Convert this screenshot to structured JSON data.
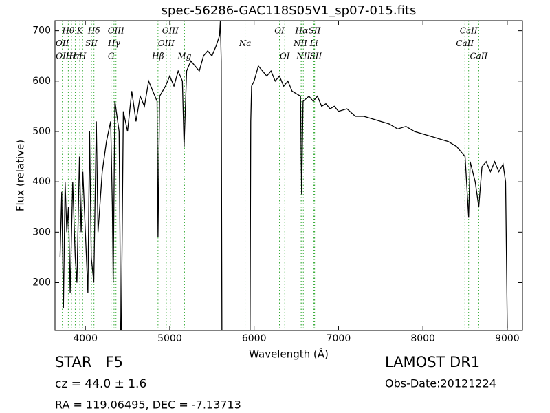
{
  "chart_data": {
    "type": "line",
    "title": "spec-56286-GAC118S05V1_sp07-015.fits",
    "xlabel": "Wavelength (Å)",
    "ylabel": "Flux (relative)",
    "color": "#000000",
    "line_color": "#33aa33",
    "xlim": [
      3640,
      9180
    ],
    "ylim": [
      105,
      720
    ],
    "xticks": [
      4000,
      5000,
      6000,
      7000,
      8000,
      9000
    ],
    "yticks": [
      200,
      300,
      400,
      500,
      600,
      700
    ],
    "x": [
      3700,
      3720,
      3740,
      3760,
      3780,
      3800,
      3820,
      3850,
      3880,
      3900,
      3930,
      3950,
      3970,
      4000,
      4030,
      4050,
      4070,
      4100,
      4130,
      4150,
      4200,
      4250,
      4300,
      4320,
      4330,
      4350,
      4400,
      4410,
      4420,
      4450,
      4500,
      4550,
      4600,
      4650,
      4700,
      4750,
      4800,
      4850,
      4861,
      4880,
      4950,
      5000,
      5050,
      5100,
      5150,
      5170,
      5200,
      5250,
      5300,
      5350,
      5400,
      5450,
      5500,
      5550,
      5590,
      5600,
      5610,
      5620,
      5950,
      5960,
      5970,
      6000,
      6050,
      6100,
      6150,
      6200,
      6250,
      6300,
      6350,
      6400,
      6450,
      6500,
      6550,
      6563,
      6580,
      6650,
      6700,
      6750,
      6800,
      6850,
      6900,
      6950,
      7000,
      7100,
      7200,
      7300,
      7400,
      7500,
      7600,
      7700,
      7800,
      7900,
      8000,
      8100,
      8200,
      8300,
      8400,
      8450,
      8500,
      8542,
      8560,
      8620,
      8662,
      8700,
      8750,
      8800,
      8850,
      8900,
      8950,
      8980,
      9000
    ],
    "values": [
      250,
      380,
      150,
      400,
      300,
      350,
      180,
      400,
      250,
      200,
      450,
      300,
      420,
      300,
      180,
      500,
      250,
      200,
      520,
      300,
      420,
      480,
      520,
      350,
      200,
      560,
      500,
      300,
      0,
      540,
      500,
      580,
      520,
      570,
      550,
      600,
      580,
      560,
      290,
      570,
      590,
      610,
      590,
      620,
      600,
      470,
      620,
      640,
      630,
      620,
      650,
      660,
      650,
      670,
      690,
      720,
      640,
      0,
      0,
      520,
      590,
      600,
      630,
      620,
      610,
      620,
      600,
      610,
      590,
      600,
      580,
      575,
      570,
      375,
      560,
      570,
      560,
      570,
      550,
      555,
      545,
      550,
      540,
      545,
      530,
      530,
      525,
      520,
      515,
      505,
      510,
      500,
      495,
      490,
      485,
      480,
      470,
      460,
      450,
      330,
      440,
      400,
      350,
      430,
      440,
      420,
      440,
      420,
      435,
      400,
      110
    ],
    "annotations": [
      {
        "label": "Hθ",
        "wavelength": 3798
      },
      {
        "label": "K",
        "wavelength": 3934
      },
      {
        "label": "Hδ",
        "wavelength": 4102
      },
      {
        "label": "OIII",
        "wavelength": 4363
      },
      {
        "label": "OIII",
        "wavelength": 5007
      },
      {
        "label": "OI",
        "wavelength": 6300
      },
      {
        "label": "Hα",
        "wavelength": 6563
      },
      {
        "label": "SII",
        "wavelength": 6716
      },
      {
        "label": "CaII",
        "wavelength": 8542
      },
      {
        "label": "OII",
        "wavelength": 3727
      },
      {
        "label": "Hε",
        "wavelength": 3835
      },
      {
        "label": "SII",
        "wavelength": 4072
      },
      {
        "label": "Hγ",
        "wavelength": 4340
      },
      {
        "label": "OIII",
        "wavelength": 4959
      },
      {
        "label": "Na",
        "wavelength": 5893
      },
      {
        "label": "NII",
        "wavelength": 6548
      },
      {
        "label": "Li",
        "wavelength": 6708
      },
      {
        "label": "CaII",
        "wavelength": 8498
      },
      {
        "label": "OII",
        "wavelength": 3729
      },
      {
        "label": "Hη",
        "wavelength": 3880
      },
      {
        "label": "H",
        "wavelength": 3968
      },
      {
        "label": "G",
        "wavelength": 4305
      },
      {
        "label": "Hβ",
        "wavelength": 4861
      },
      {
        "label": "Mg",
        "wavelength": 5175
      },
      {
        "label": "OI",
        "wavelength": 6363
      },
      {
        "label": "NII",
        "wavelength": 6583
      },
      {
        "label": "SII",
        "wavelength": 6731
      },
      {
        "label": "CaII",
        "wavelength": 8662
      }
    ]
  },
  "info": {
    "object": "STAR   F5",
    "cz": "cz = 44.0 ± 1.6",
    "coords": "RA = 119.06495, DEC = -7.13713",
    "survey": "LAMOST DR1",
    "obs_date": "Obs-Date:20121224"
  }
}
